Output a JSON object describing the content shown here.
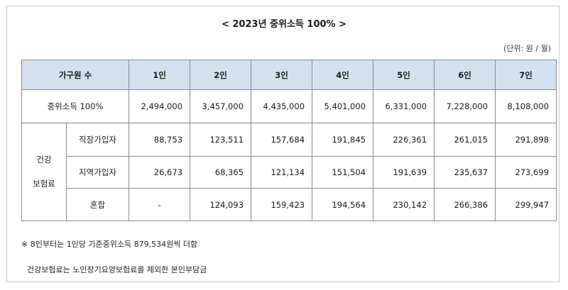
{
  "title": "< 2023년 중위소득 100% >",
  "unit": "(단위: 원 / 월)",
  "table": {
    "header": {
      "label": "가구원 수",
      "cols": [
        "1인",
        "2인",
        "3인",
        "4인",
        "5인",
        "6인",
        "7인"
      ]
    },
    "median_row": {
      "label": "중위소득 100%",
      "values": [
        "2,494,000",
        "3,457,000",
        "4,435,000",
        "5,401,000",
        "6,331,000",
        "7,228,000",
        "8,108,000"
      ]
    },
    "insurance_group": {
      "line1": "건강",
      "line2": "보험료",
      "rows": [
        {
          "label": "직장가입자",
          "values": [
            "88,753",
            "123,511",
            "157,684",
            "191,845",
            "226,361",
            "261,015",
            "291,898"
          ]
        },
        {
          "label": "지역가입자",
          "values": [
            "26,673",
            "68,365",
            "121,134",
            "151,504",
            "191,639",
            "235,637",
            "273,699"
          ]
        },
        {
          "label": "혼합",
          "values": [
            "-",
            "124,093",
            "159,423",
            "194,564",
            "230,142",
            "266,386",
            "299,947"
          ]
        }
      ]
    }
  },
  "notes": {
    "note1": "※ 8인부터는 1인당 기준중위소득 879,534원씩 더함",
    "note2": "건강보험료는 노인장기요양보험료를 제외한 본인부담금"
  },
  "colors": {
    "header_bg": "#d4e0ef",
    "border": "#8a8a8a",
    "frame": "#c9c9c9"
  }
}
